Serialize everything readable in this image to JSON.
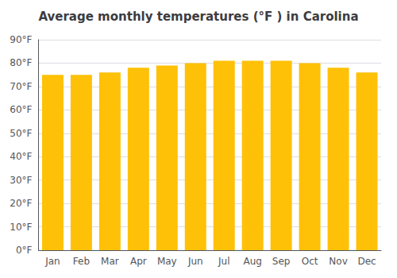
{
  "chart_data": {
    "type": "bar",
    "title": "Average monthly temperatures (°F ) in Carolina",
    "categories": [
      "Jan",
      "Feb",
      "Mar",
      "Apr",
      "May",
      "Jun",
      "Jul",
      "Aug",
      "Sep",
      "Oct",
      "Nov",
      "Dec"
    ],
    "values": [
      75,
      75,
      76,
      78,
      79,
      80,
      81,
      81,
      81,
      80,
      78,
      76
    ],
    "color": "#FFC107",
    "ylim": [
      0,
      90
    ],
    "yticks": [
      {
        "value": 0,
        "label": "0°F"
      },
      {
        "value": 10,
        "label": "10°F"
      },
      {
        "value": 20,
        "label": "20°F"
      },
      {
        "value": 30,
        "label": "30°F"
      },
      {
        "value": 40,
        "label": "40°F"
      },
      {
        "value": 50,
        "label": "50°F"
      },
      {
        "value": 60,
        "label": "60°F"
      },
      {
        "value": 70,
        "label": "70°F"
      },
      {
        "value": 80,
        "label": "80°F"
      },
      {
        "value": 90,
        "label": "90°F"
      }
    ],
    "grid": true
  }
}
